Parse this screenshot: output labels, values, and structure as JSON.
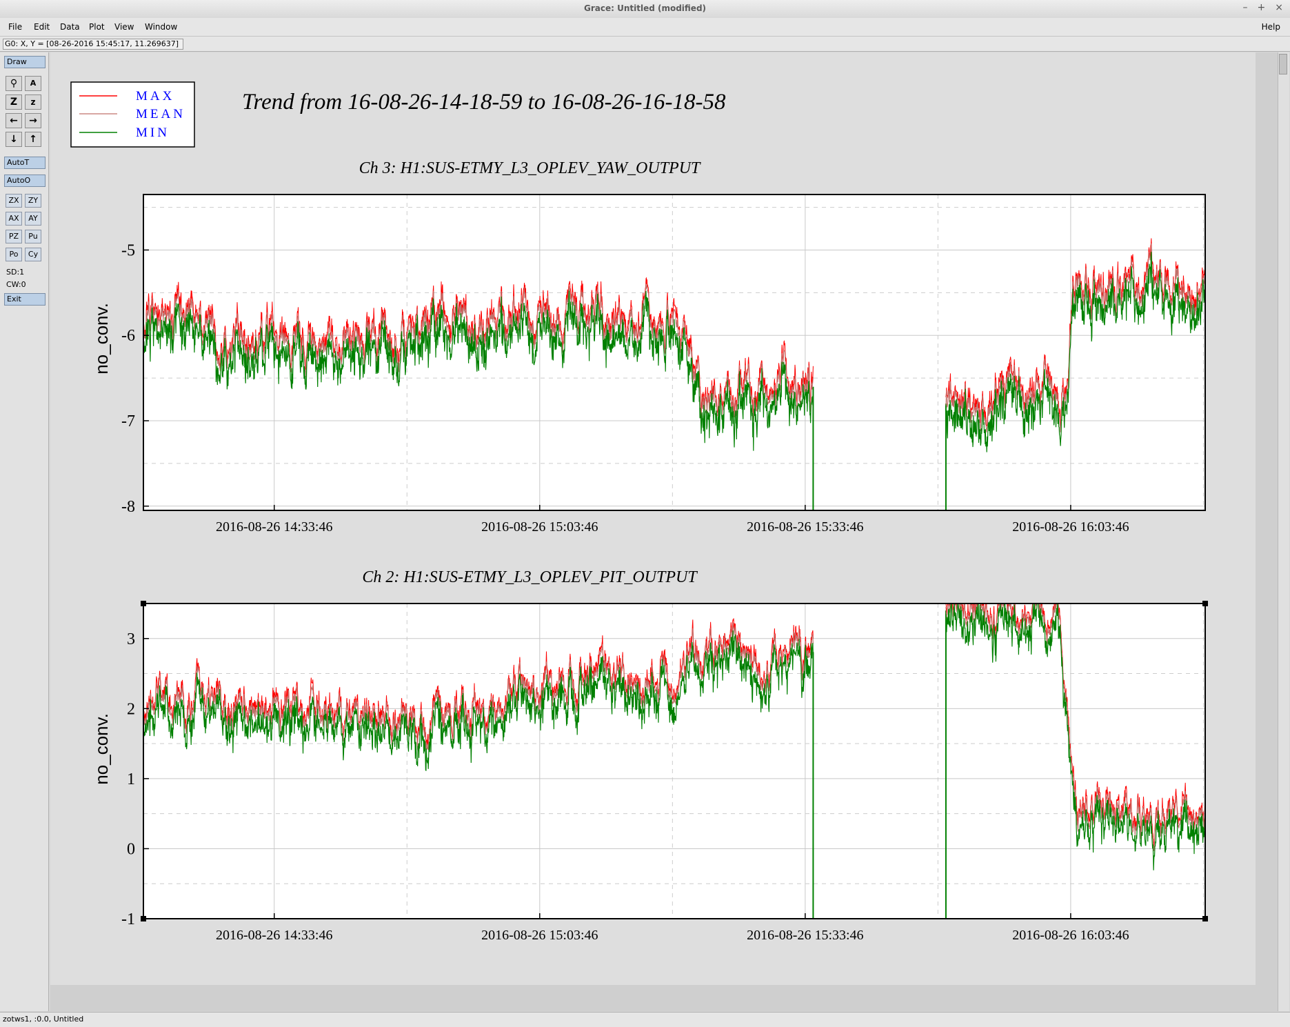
{
  "window": {
    "title": "Grace: Untitled (modified)",
    "controls": [
      "–",
      "+",
      "×"
    ]
  },
  "menubar": {
    "items": [
      "File",
      "Edit",
      "Data",
      "Plot",
      "View",
      "Window"
    ],
    "help": "Help"
  },
  "coordinates": "G0: X, Y = [08-26-2016 15:45:17, 11.269637]",
  "toolbar": {
    "draw": "Draw",
    "icons": [
      "zoom-icon",
      "autoscale-icon",
      "zoom-in-icon",
      "zoom-out-icon",
      "left-arrow-icon",
      "right-arrow-icon",
      "down-arrow-icon",
      "up-arrow-icon"
    ],
    "icon_glyphs": [
      "⚲",
      "A",
      "Z",
      "z",
      "←",
      "→",
      "↓",
      "↑"
    ],
    "autot": "AutoT",
    "autoo": "AutoO",
    "small_buttons": [
      "ZX",
      "ZY",
      "AX",
      "AY",
      "PZ",
      "Pu",
      "Po",
      "Cy"
    ],
    "sd": "SD:1",
    "cw": "CW:0",
    "exit": "Exit"
  },
  "legend": {
    "entries": [
      {
        "label": "MAX",
        "color": "#ff0000"
      },
      {
        "label": "MEAN",
        "color": "#c0706a"
      },
      {
        "label": "MIN",
        "color": "#008000"
      }
    ],
    "text_color": "#0000ff"
  },
  "main_title": "Trend from 16-08-26-14-18-59 to 16-08-26-16-18-58",
  "chart_data": [
    {
      "type": "line",
      "title": "Ch 3: H1:SUS-ETMY_L3_OPLEV_YAW_OUTPUT",
      "ylabel": "no_conv.",
      "xlabel": "",
      "xlim": [
        "2016-08-26 14:18:59",
        "2016-08-26 16:18:58"
      ],
      "ylim": [
        -8.05,
        -4.35
      ],
      "yticks": [
        -5,
        -6,
        -7,
        -8
      ],
      "xticks": [
        "2016-08-26 14:33:46",
        "2016-08-26 15:03:46",
        "2016-08-26 15:33:46",
        "2016-08-26 16:03:46"
      ],
      "grid": true,
      "gap": [
        "2016-08-26 15:34:40",
        "2016-08-26 15:49:40"
      ],
      "series": [
        {
          "name": "MAX",
          "color": "#ff0000"
        },
        {
          "name": "MEAN",
          "color": "#c0706a"
        },
        {
          "name": "MIN",
          "color": "#008000"
        }
      ],
      "trend": {
        "times": [
          "14:18:59",
          "14:30:00",
          "14:40:00",
          "14:50:00",
          "15:00:00",
          "15:10:00",
          "15:20:00",
          "15:22:00",
          "15:30:00",
          "15:34:30",
          "15:49:40",
          "16:00:00",
          "16:03:30",
          "16:04:00",
          "16:10:00",
          "16:18:58"
        ],
        "mean": [
          -5.9,
          -6.0,
          -6.1,
          -6.0,
          -5.75,
          -5.8,
          -6.0,
          -6.7,
          -6.65,
          -6.6,
          -6.8,
          -6.7,
          -6.7,
          -5.6,
          -5.45,
          -5.4
        ],
        "spread": 0.28
      }
    },
    {
      "type": "line",
      "title": "Ch 2: H1:SUS-ETMY_L3_OPLEV_PIT_OUTPUT",
      "ylabel": "no_conv.",
      "xlabel": "",
      "xlim": [
        "2016-08-26 14:18:59",
        "2016-08-26 16:18:58"
      ],
      "ylim": [
        -1,
        3.5
      ],
      "yticks": [
        3,
        2,
        1,
        0,
        -1
      ],
      "xticks": [
        "2016-08-26 14:33:46",
        "2016-08-26 15:03:46",
        "2016-08-26 15:33:46",
        "2016-08-26 16:03:46"
      ],
      "grid": true,
      "gap": [
        "2016-08-26 15:34:40",
        "2016-08-26 15:49:40"
      ],
      "series": [
        {
          "name": "MAX",
          "color": "#ff0000"
        },
        {
          "name": "MEAN",
          "color": "#c0706a"
        },
        {
          "name": "MIN",
          "color": "#008000"
        }
      ],
      "trend": {
        "times": [
          "14:18:59",
          "14:30:00",
          "14:40:00",
          "14:50:00",
          "14:55:00",
          "15:00:00",
          "15:10:00",
          "15:20:00",
          "15:21:00",
          "15:30:00",
          "15:34:30",
          "15:49:40",
          "16:00:00",
          "16:02:30",
          "16:04:30",
          "16:10:00",
          "16:18:58"
        ],
        "mean": [
          2.0,
          2.1,
          1.85,
          1.75,
          1.8,
          2.1,
          2.55,
          2.3,
          2.9,
          2.75,
          2.8,
          3.4,
          3.3,
          3.15,
          0.6,
          0.55,
          0.45
        ],
        "spread": 0.3
      }
    }
  ],
  "status": "zotws1, :0.0, Untitled"
}
